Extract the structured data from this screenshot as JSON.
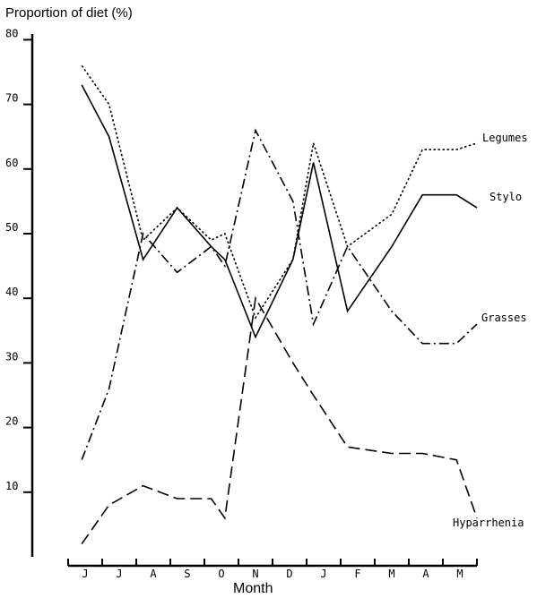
{
  "chart_data": {
    "type": "line",
    "ylabel": "Proportion of diet (%)",
    "xlabel": "Month",
    "categories": [
      "J",
      "J",
      "A",
      "S",
      "O",
      "N",
      "D",
      "J",
      "F",
      "M",
      "A",
      "M"
    ],
    "ylim": [
      0,
      80
    ],
    "yticks": [
      10,
      20,
      30,
      40,
      50,
      60,
      70,
      80
    ],
    "x": [
      0.4,
      1.2,
      2.2,
      3.2,
      4.2,
      4.6,
      5.5,
      6.6,
      7.2,
      8.2,
      9.5,
      10.4,
      11.4,
      12.0
    ],
    "series": [
      {
        "name": "Legumes",
        "style": "dotted",
        "x": [
          0.4,
          1.2,
          2.2,
          3.2,
          4.2,
          4.6,
          5.5,
          6.6,
          7.2,
          8.2,
          9.5,
          10.4,
          11.4,
          12.0
        ],
        "values": [
          76,
          70,
          49,
          54,
          49,
          50,
          37,
          46,
          64,
          48,
          53,
          63,
          63,
          64
        ]
      },
      {
        "name": "Stylo",
        "style": "solid",
        "x": [
          0.4,
          1.2,
          2.2,
          3.2,
          4.2,
          4.6,
          5.5,
          6.6,
          7.2,
          8.2,
          9.5,
          10.4,
          11.4,
          12.0
        ],
        "values": [
          73,
          65,
          46,
          54,
          48,
          46,
          34,
          46,
          61,
          38,
          48,
          56,
          56,
          54
        ]
      },
      {
        "name": "Grasses",
        "style": "dash-dot",
        "x": [
          0.4,
          1.2,
          2.2,
          3.2,
          4.2,
          4.6,
          5.5,
          6.6,
          7.2,
          8.2,
          9.5,
          10.4,
          11.4,
          12.0
        ],
        "values": [
          15,
          26,
          50,
          44,
          48,
          45,
          66,
          55,
          36,
          48,
          38,
          33,
          33,
          36
        ]
      },
      {
        "name": "Hyparrhenia",
        "style": "dashed",
        "x": [
          0.4,
          1.2,
          2.2,
          3.2,
          4.2,
          4.6,
          5.5,
          6.6,
          7.2,
          8.2,
          9.5,
          10.4,
          11.4,
          12.0
        ],
        "values": [
          2,
          8,
          11,
          9,
          9,
          6,
          40,
          30,
          25,
          17,
          16,
          16,
          15,
          6
        ]
      }
    ],
    "legend": "inline-right",
    "grid": false
  }
}
